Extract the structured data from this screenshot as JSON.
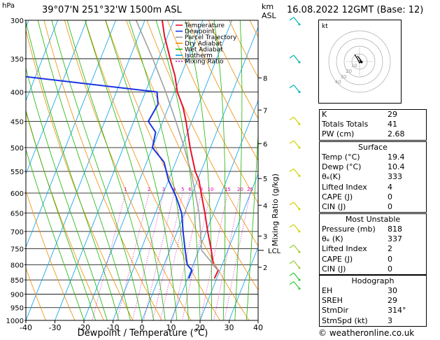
{
  "header": {
    "pressure_unit": "hPa",
    "location": "39°07'N 251°32'W 1500m ASL",
    "km_label": "km",
    "asl_label": "ASL",
    "datetime": "16.08.2022 12GMT (Base: 12)",
    "copyright": "© weatheronline.co.uk"
  },
  "chart_data": {
    "type": "skew-t",
    "xlabel": "Dewpoint / Temperature (°C)",
    "ylabel_right": "Mixing Ratio (g/kg)",
    "x_ticks": [
      -40,
      -30,
      -20,
      -10,
      0,
      10,
      20,
      30,
      40
    ],
    "xlim": [
      -40,
      40
    ],
    "pressure_levels": [
      300,
      350,
      400,
      450,
      500,
      550,
      600,
      650,
      700,
      750,
      800,
      850,
      900,
      950,
      1000
    ],
    "ylim": [
      1000,
      300
    ],
    "km_ticks": [
      {
        "label": "8",
        "p": 378
      },
      {
        "label": "7",
        "p": 430
      },
      {
        "label": "6",
        "p": 492
      },
      {
        "label": "5",
        "p": 566
      },
      {
        "label": "4",
        "p": 630
      },
      {
        "label": "3",
        "p": 713
      },
      {
        "label": "2",
        "p": 808
      }
    ],
    "lcl": {
      "label": "LCL",
      "p": 755
    },
    "mixing_ratio_labels": [
      "1",
      "2",
      "3",
      "4",
      "5",
      "6",
      "8",
      "10",
      "15",
      "20",
      "25"
    ],
    "mixing_ratio_values": [
      1,
      2,
      3,
      4,
      5,
      6,
      8,
      10,
      15,
      20,
      25
    ],
    "legend": [
      {
        "name": "Temperature",
        "color": "#e8112d",
        "dash": ""
      },
      {
        "name": "Dewpoint",
        "color": "#1a33e6",
        "dash": ""
      },
      {
        "name": "Parcel Trajectory",
        "color": "#a0a0a0",
        "dash": ""
      },
      {
        "name": "Dry Adiabat",
        "color": "#f08c00",
        "dash": ""
      },
      {
        "name": "Wet Adiabat",
        "color": "#19b400",
        "dash": ""
      },
      {
        "name": "Isotherm",
        "color": "#00a0e6",
        "dash": ""
      },
      {
        "name": "Mixing Ratio",
        "color": "#dc00b4",
        "dash": "2,2"
      }
    ],
    "series": [
      {
        "name": "Temperature",
        "color": "#e8112d",
        "points": [
          {
            "p": 300,
            "t": -34
          },
          {
            "p": 320,
            "t": -31
          },
          {
            "p": 350,
            "t": -26
          },
          {
            "p": 375,
            "t": -22
          },
          {
            "p": 400,
            "t": -19
          },
          {
            "p": 425,
            "t": -15
          },
          {
            "p": 450,
            "t": -12
          },
          {
            "p": 500,
            "t": -7
          },
          {
            "p": 550,
            "t": -2
          },
          {
            "p": 570,
            "t": 0.5
          },
          {
            "p": 600,
            "t": 3
          },
          {
            "p": 650,
            "t": 7
          },
          {
            "p": 700,
            "t": 10.5
          },
          {
            "p": 750,
            "t": 14
          },
          {
            "p": 800,
            "t": 17
          },
          {
            "p": 818,
            "t": 19.4
          },
          {
            "p": 845,
            "t": 19.2
          }
        ]
      },
      {
        "name": "Dewpoint",
        "color": "#1a33e6",
        "points": [
          {
            "p": 300,
            "t": -90
          },
          {
            "p": 330,
            "t": -88
          },
          {
            "p": 370,
            "t": -86
          },
          {
            "p": 400,
            "t": -26
          },
          {
            "p": 420,
            "t": -24
          },
          {
            "p": 450,
            "t": -25
          },
          {
            "p": 470,
            "t": -21
          },
          {
            "p": 500,
            "t": -20
          },
          {
            "p": 530,
            "t": -14
          },
          {
            "p": 570,
            "t": -10
          },
          {
            "p": 610,
            "t": -5
          },
          {
            "p": 650,
            "t": -1
          },
          {
            "p": 700,
            "t": 2
          },
          {
            "p": 750,
            "t": 5
          },
          {
            "p": 800,
            "t": 8
          },
          {
            "p": 818,
            "t": 10.4
          },
          {
            "p": 845,
            "t": 10.4
          }
        ]
      },
      {
        "name": "Parcel Trajectory",
        "color": "#a0a0a0",
        "points": [
          {
            "p": 818,
            "t": 19.4
          },
          {
            "p": 755,
            "t": 11
          },
          {
            "p": 700,
            "t": 8
          },
          {
            "p": 650,
            "t": 5
          },
          {
            "p": 600,
            "t": 1
          },
          {
            "p": 550,
            "t": -3.5
          },
          {
            "p": 500,
            "t": -9
          },
          {
            "p": 450,
            "t": -15.5
          },
          {
            "p": 400,
            "t": -23
          },
          {
            "p": 350,
            "t": -32
          },
          {
            "p": 300,
            "t": -43
          }
        ]
      }
    ]
  },
  "hodograph": {
    "unit_label": "kt",
    "ring_labels": [
      "10",
      "20",
      "30",
      "40"
    ]
  },
  "indices": [
    {
      "label": "K",
      "value": "29"
    },
    {
      "label": "Totals Totals",
      "value": "41"
    },
    {
      "label": "PW (cm)",
      "value": "2.68"
    }
  ],
  "surface": {
    "title": "Surface",
    "rows": [
      {
        "label": "Temp (°C)",
        "value": "19.4"
      },
      {
        "label": "Dewp (°C)",
        "value": "10.4"
      },
      {
        "label": "θₑ(K)",
        "value": "333"
      },
      {
        "label": "Lifted Index",
        "value": "4"
      },
      {
        "label": "CAPE (J)",
        "value": "0"
      },
      {
        "label": "CIN (J)",
        "value": "0"
      }
    ]
  },
  "most_unstable": {
    "title": "Most Unstable",
    "rows": [
      {
        "label": "Pressure (mb)",
        "value": "818"
      },
      {
        "label": "θₑ (K)",
        "value": "337"
      },
      {
        "label": "Lifted Index",
        "value": "2"
      },
      {
        "label": "CAPE (J)",
        "value": "0"
      },
      {
        "label": "CIN (J)",
        "value": "0"
      }
    ]
  },
  "hodograph_table": {
    "title": "Hodograph",
    "rows": [
      {
        "label": "EH",
        "value": "30"
      },
      {
        "label": "SREH",
        "value": "29"
      },
      {
        "label": "StmDir",
        "value": "314°"
      },
      {
        "label": "StmSpd (kt)",
        "value": "3"
      }
    ]
  }
}
